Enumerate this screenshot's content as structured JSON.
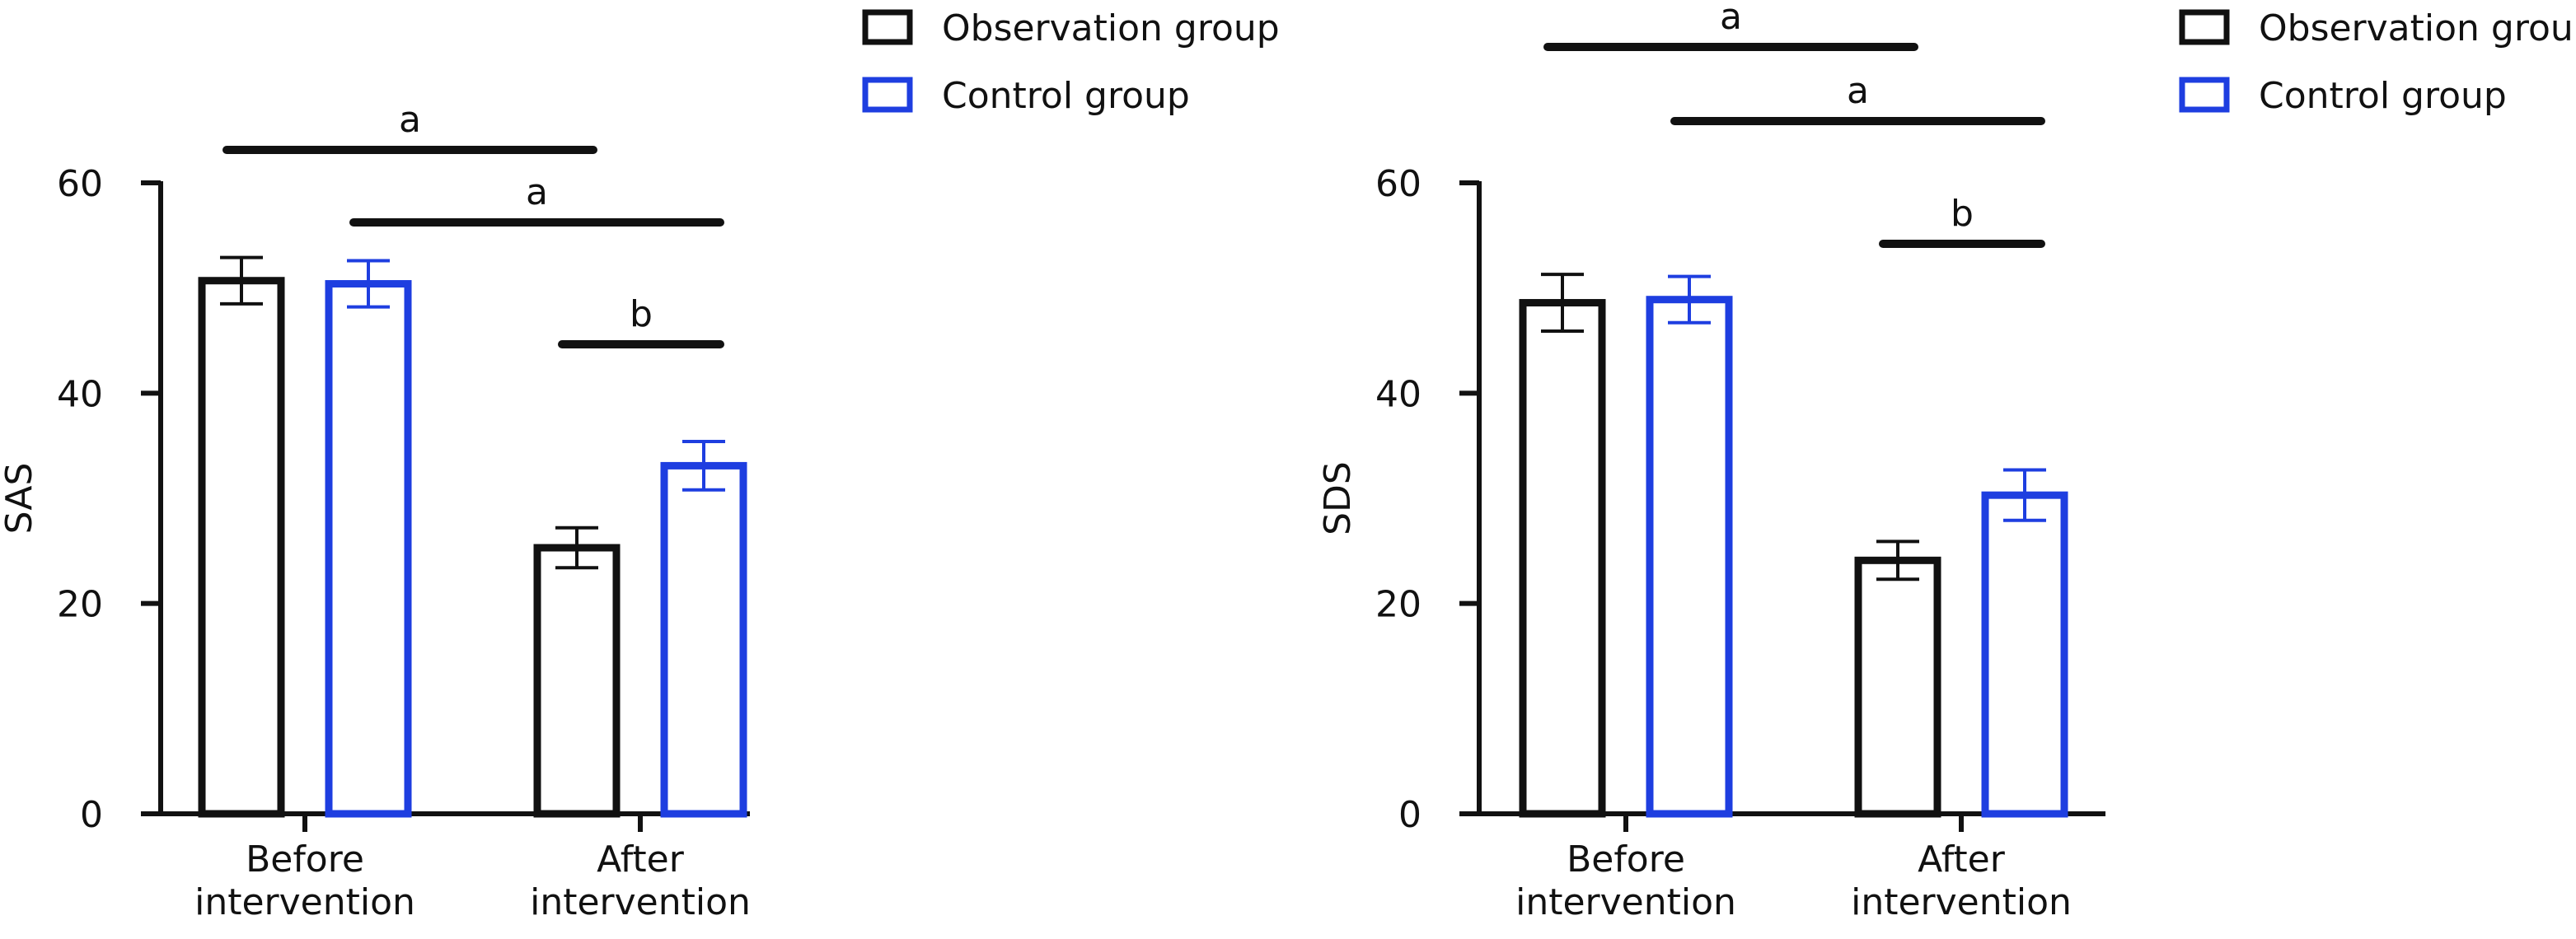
{
  "legend": [
    {
      "label": "Observation group",
      "color": "#111111"
    },
    {
      "label": "Control group",
      "color": "#1e3ee0"
    }
  ],
  "chart_data": [
    {
      "type": "bar",
      "ylabel": "SAS",
      "ylim": [
        0,
        60
      ],
      "yticks": [
        0,
        20,
        40,
        60
      ],
      "categories": [
        [
          "Before",
          "intervention"
        ],
        [
          "After",
          "intervention"
        ]
      ],
      "series": [
        {
          "name": "Observation group",
          "color": "#111111",
          "values": [
            50.7,
            25.3
          ],
          "errors": [
            2.2,
            1.9
          ]
        },
        {
          "name": "Control group",
          "color": "#1e3ee0",
          "values": [
            50.4,
            33.1
          ],
          "errors": [
            2.2,
            2.3
          ]
        }
      ],
      "significance": [
        {
          "label": "a",
          "between": [
            [
              0,
              0
            ],
            [
              1,
              0
            ]
          ]
        },
        {
          "label": "a",
          "between": [
            [
              0,
              1
            ],
            [
              1,
              1
            ]
          ]
        },
        {
          "label": "b",
          "between": [
            [
              1,
              0
            ],
            [
              1,
              1
            ]
          ]
        }
      ]
    },
    {
      "type": "bar",
      "ylabel": "SDS",
      "ylim": [
        0,
        60
      ],
      "yticks": [
        0,
        20,
        40,
        60
      ],
      "categories": [
        [
          "Before",
          "intervention"
        ],
        [
          "After",
          "intervention"
        ]
      ],
      "series": [
        {
          "name": "Observation group",
          "color": "#111111",
          "values": [
            48.6,
            24.1
          ],
          "errors": [
            2.7,
            1.8
          ]
        },
        {
          "name": "Control group",
          "color": "#1e3ee0",
          "values": [
            48.9,
            30.3
          ],
          "errors": [
            2.2,
            2.4
          ]
        }
      ],
      "significance": [
        {
          "label": "a",
          "between": [
            [
              0,
              0
            ],
            [
              1,
              0
            ]
          ]
        },
        {
          "label": "a",
          "between": [
            [
              0,
              1
            ],
            [
              1,
              1
            ]
          ]
        },
        {
          "label": "b",
          "between": [
            [
              1,
              0
            ],
            [
              1,
              1
            ]
          ]
        }
      ]
    }
  ]
}
